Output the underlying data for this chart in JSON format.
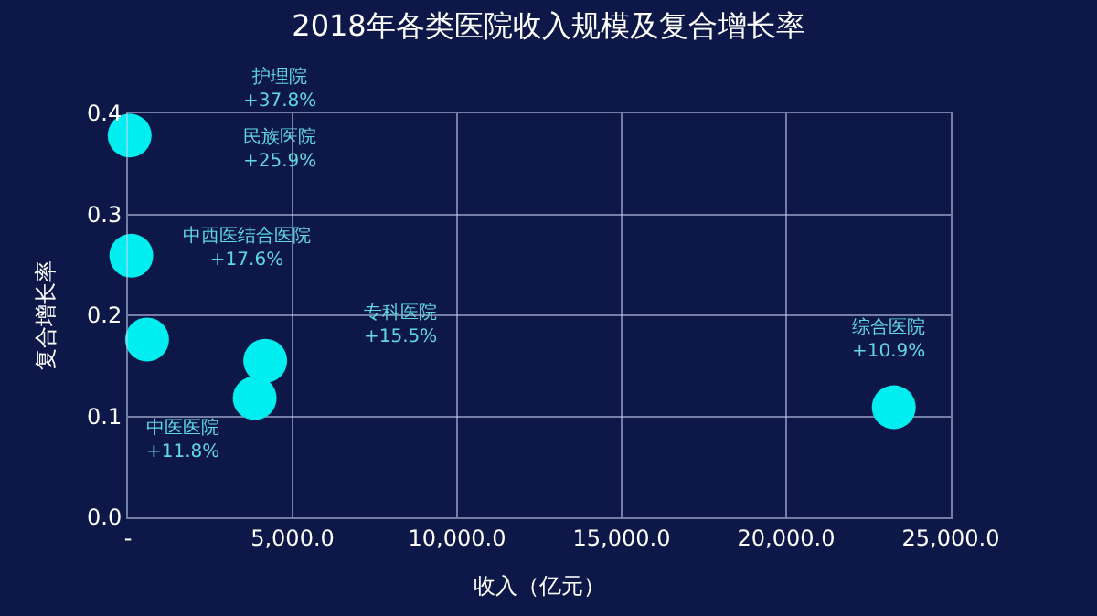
{
  "chart_data": {
    "type": "scatter",
    "title": "2018年各类医院收入规模及复合增长率",
    "xlabel": "收入（亿元）",
    "ylabel": "复合增长率",
    "x": [
      50,
      100,
      580,
      4170,
      3850,
      23270
    ],
    "series": [
      {
        "color": "#00eef0",
        "values": [
          0.378,
          0.259,
          0.176,
          0.155,
          0.118,
          0.109
        ]
      }
    ],
    "marker": "circle",
    "grid": true,
    "xlim": [
      0,
      25000
    ],
    "xticks": [
      {
        "value": 0,
        "label": "-"
      },
      {
        "value": 5000,
        "label": "5,000.0"
      },
      {
        "value": 10000,
        "label": "10,000.0"
      },
      {
        "value": 15000,
        "label": "15,000.0"
      },
      {
        "value": 20000,
        "label": "20,000.0"
      },
      {
        "value": 25000,
        "label": "25,000.0"
      }
    ],
    "ylim": [
      0,
      0.4
    ],
    "yticks": [
      {
        "value": 0,
        "label": "0.0"
      },
      {
        "value": 0.1,
        "label": "0.1"
      },
      {
        "value": 0.2,
        "label": "0.2"
      },
      {
        "value": 0.3,
        "label": "0.3"
      },
      {
        "value": 0.4,
        "label": "0.4"
      }
    ],
    "annotations": [
      "护理院\n+37.8%",
      "民族医院\n+25.9%",
      "中西医结合医院\n+17.6%",
      "专科医院\n+15.5%",
      "中医医院\n+11.8%",
      "综合医院\n+10.9%"
    ]
  }
}
